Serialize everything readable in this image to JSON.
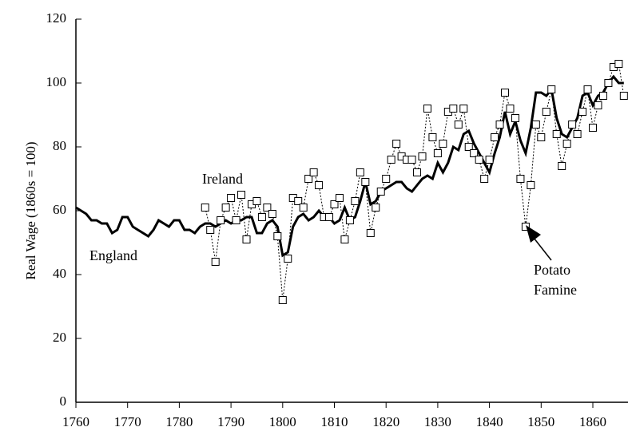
{
  "chart_data": {
    "type": "line",
    "y_label": "Real Wage (1860s = 100)",
    "x": [
      1760,
      1761,
      1762,
      1763,
      1764,
      1765,
      1766,
      1767,
      1768,
      1769,
      1770,
      1771,
      1772,
      1773,
      1774,
      1775,
      1776,
      1777,
      1778,
      1779,
      1780,
      1781,
      1782,
      1783,
      1784,
      1785,
      1786,
      1787,
      1788,
      1789,
      1790,
      1791,
      1792,
      1793,
      1794,
      1795,
      1796,
      1797,
      1798,
      1799,
      1800,
      1801,
      1802,
      1803,
      1804,
      1805,
      1806,
      1807,
      1808,
      1809,
      1810,
      1811,
      1812,
      1813,
      1814,
      1815,
      1816,
      1817,
      1818,
      1819,
      1820,
      1821,
      1822,
      1823,
      1824,
      1825,
      1826,
      1827,
      1828,
      1829,
      1830,
      1831,
      1832,
      1833,
      1834,
      1835,
      1836,
      1837,
      1838,
      1839,
      1840,
      1841,
      1842,
      1843,
      1844,
      1845,
      1846,
      1847,
      1848,
      1849,
      1850,
      1851,
      1852,
      1853,
      1854,
      1855,
      1856,
      1857,
      1858,
      1859,
      1860,
      1861,
      1862,
      1863,
      1864,
      1865,
      1866
    ],
    "series": [
      {
        "name": "England",
        "color": "#000000",
        "values": [
          61,
          60,
          59,
          57,
          57,
          56,
          56,
          53,
          54,
          58,
          58,
          55,
          54,
          53,
          52,
          54,
          57,
          56,
          55,
          57,
          57,
          54,
          54,
          53,
          55,
          56,
          56,
          55,
          56,
          57,
          56,
          57,
          57,
          58,
          58,
          53,
          53,
          56,
          57,
          55,
          46,
          47,
          55,
          58,
          59,
          57,
          58,
          60,
          58,
          58,
          56,
          57,
          61,
          57,
          58,
          63,
          69,
          62,
          63,
          66,
          67,
          68,
          69,
          69,
          67,
          66,
          68,
          70,
          71,
          70,
          75,
          72,
          75,
          80,
          79,
          84,
          85,
          81,
          78,
          75,
          72,
          78,
          83,
          91,
          84,
          88,
          82,
          78,
          86,
          97,
          97,
          96,
          98,
          89,
          84,
          83,
          86,
          89,
          96,
          97,
          93,
          96,
          97,
          100,
          102,
          100,
          100
        ]
      },
      {
        "name": "Ireland",
        "color": "#000000",
        "values": [
          null,
          null,
          null,
          null,
          null,
          null,
          null,
          null,
          null,
          null,
          null,
          null,
          null,
          null,
          null,
          null,
          null,
          null,
          null,
          null,
          null,
          null,
          null,
          null,
          null,
          61,
          54,
          44,
          57,
          61,
          64,
          57,
          65,
          51,
          62,
          63,
          58,
          61,
          59,
          52,
          32,
          45,
          64,
          63,
          61,
          70,
          72,
          68,
          58,
          58,
          62,
          64,
          51,
          57,
          63,
          72,
          69,
          53,
          61,
          66,
          70,
          76,
          81,
          77,
          76,
          76,
          72,
          77,
          92,
          83,
          78,
          81,
          91,
          92,
          87,
          92,
          80,
          78,
          76,
          70,
          76,
          83,
          87,
          97,
          92,
          89,
          70,
          55,
          68,
          87,
          83,
          91,
          98,
          84,
          74,
          81,
          87,
          84,
          91,
          98,
          86,
          93,
          96,
          100,
          105,
          106,
          96
        ]
      }
    ],
    "annotation": [
      "Potato",
      "Famine"
    ],
    "xlim": [
      1760,
      1866.8
    ],
    "xticks": [
      1760,
      1770,
      1780,
      1790,
      1800,
      1810,
      1820,
      1830,
      1840,
      1850,
      1860
    ],
    "ylim": [
      0,
      120
    ],
    "yticks": [
      0,
      20,
      40,
      60,
      80,
      100,
      120
    ]
  }
}
